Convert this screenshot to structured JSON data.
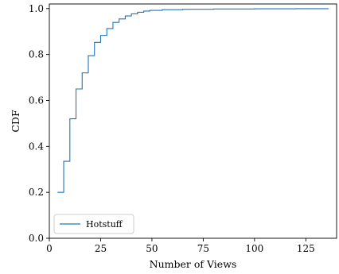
{
  "chart_data": {
    "type": "line",
    "step": true,
    "xlabel": "Number of Views",
    "ylabel": "CDF",
    "xlim": [
      0,
      140
    ],
    "ylim": [
      0,
      1.02
    ],
    "xticks": [
      0,
      25,
      50,
      75,
      100,
      125
    ],
    "yticks": [
      0.0,
      0.2,
      0.4,
      0.6,
      0.8,
      1.0
    ],
    "legend_position": "lower-left",
    "grid": false,
    "series": [
      {
        "name": "Hotstuff",
        "color": "#1f77b4",
        "x": [
          4,
          7,
          10,
          13,
          16,
          19,
          22,
          25,
          28,
          31,
          34,
          37,
          40,
          43,
          46,
          49,
          55,
          65,
          80,
          100,
          120,
          136
        ],
        "y": [
          0.2,
          0.335,
          0.52,
          0.65,
          0.72,
          0.795,
          0.853,
          0.883,
          0.913,
          0.94,
          0.955,
          0.968,
          0.977,
          0.984,
          0.989,
          0.992,
          0.995,
          0.997,
          0.998,
          0.999,
          0.9995,
          1.0
        ]
      }
    ]
  }
}
